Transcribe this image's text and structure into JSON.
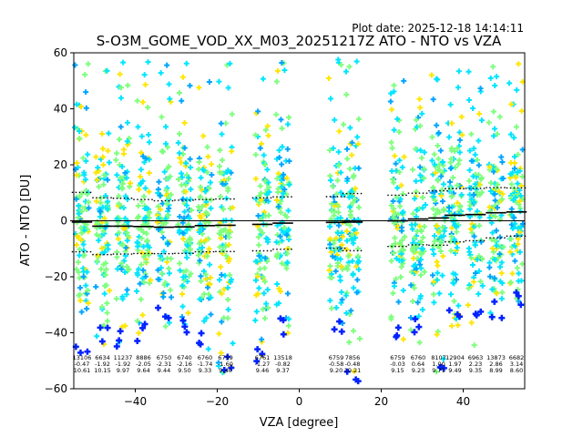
{
  "chart_data": {
    "type": "scatter",
    "title": "S-O3M_GOME_VOD_XX_M03_20251217Z ATO - NTO vs VZA",
    "subtitle": "Plot date: 2025-12-18 14:14:11",
    "xlabel": "VZA [degree]",
    "ylabel": "ATO - NTO [DU]",
    "xlim": [
      -55,
      55
    ],
    "ylim": [
      -60,
      60
    ],
    "xticks": [
      -40,
      -20,
      0,
      20,
      40
    ],
    "yticks": [
      -60,
      -40,
      -20,
      0,
      20,
      40,
      60
    ],
    "grid": false,
    "point_colors": [
      "#00e5ff",
      "#7dff7d",
      "#ffe600",
      "#00a5ff",
      "#0022ff"
    ],
    "zero_line": 0,
    "bins": [
      {
        "x": -53,
        "n": "13106",
        "mean": -0.47,
        "std": 10.61,
        "ylo": -48,
        "yhi": 60
      },
      {
        "x": -48,
        "n": "6634",
        "mean": -1.92,
        "std": 10.15,
        "ylo": -45,
        "yhi": 60
      },
      {
        "x": -43,
        "n": "11237",
        "mean": -1.92,
        "std": 9.97,
        "ylo": -45,
        "yhi": 58
      },
      {
        "x": -38,
        "n": "8886",
        "mean": -2.05,
        "std": 9.64,
        "ylo": -44,
        "yhi": 58
      },
      {
        "x": -33,
        "n": "6750",
        "mean": -2.31,
        "std": 9.44,
        "ylo": -38,
        "yhi": 57
      },
      {
        "x": -28,
        "n": "6740",
        "mean": -2.16,
        "std": 9.5,
        "ylo": -42,
        "yhi": 57
      },
      {
        "x": -23,
        "n": "6760",
        "mean": -1.74,
        "std": 9.33,
        "ylo": -46,
        "yhi": 50
      },
      {
        "x": -18,
        "n": "6759",
        "mean": -1.6,
        "std": 9.4,
        "ylo": -55,
        "yhi": 57
      },
      {
        "x": -9,
        "n": "6761",
        "mean": -1.27,
        "std": 9.46,
        "ylo": -52,
        "yhi": 59
      },
      {
        "x": -4,
        "n": "13518",
        "mean": -0.82,
        "std": 9.37,
        "ylo": -41,
        "yhi": 60
      },
      {
        "x": 9,
        "n": "6759",
        "mean": -0.58,
        "std": 9.2,
        "ylo": -42,
        "yhi": 58
      },
      {
        "x": 13,
        "n": "7856",
        "mean": -0.48,
        "std": 10.21,
        "ylo": -58,
        "yhi": 58
      },
      {
        "x": 24,
        "n": "6759",
        "mean": -0.03,
        "std": 9.15,
        "ylo": -44,
        "yhi": 53
      },
      {
        "x": 29,
        "n": "6760",
        "mean": 0.64,
        "std": 9.23,
        "ylo": -41,
        "yhi": 53
      },
      {
        "x": 34,
        "n": "8107",
        "mean": 1.0,
        "std": 9.71,
        "ylo": -56,
        "yhi": 57
      },
      {
        "x": 38,
        "n": "12904",
        "mean": 1.97,
        "std": 9.49,
        "ylo": -38,
        "yhi": 58
      },
      {
        "x": 43,
        "n": "6963",
        "mean": 2.23,
        "std": 9.35,
        "ylo": -37,
        "yhi": 57
      },
      {
        "x": 48,
        "n": "13873",
        "mean": 2.86,
        "std": 8.99,
        "ylo": -36,
        "yhi": 58
      },
      {
        "x": 53,
        "n": "6682",
        "mean": 3.14,
        "std": 8.6,
        "ylo": -33,
        "yhi": 58
      }
    ]
  }
}
